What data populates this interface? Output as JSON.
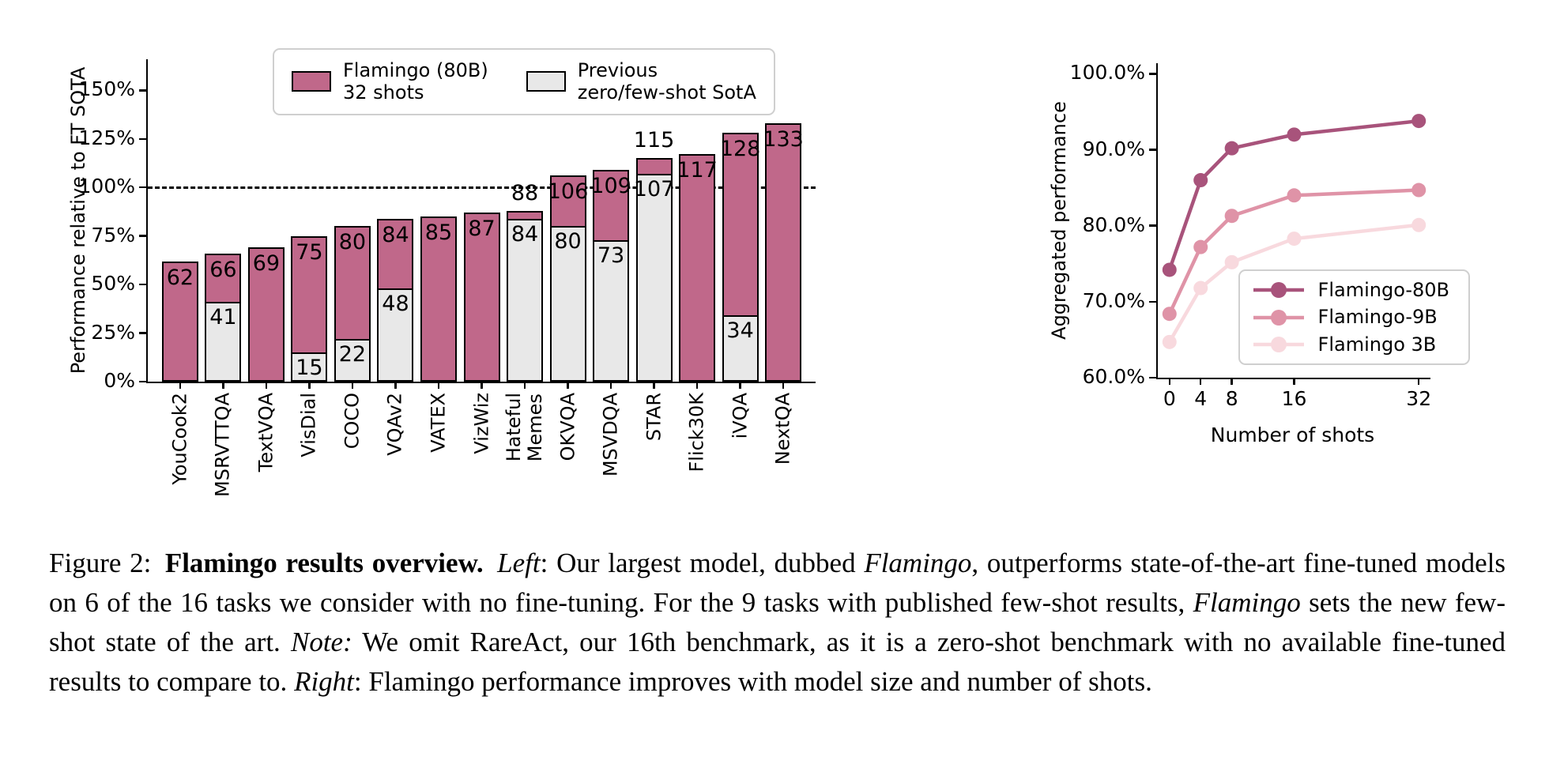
{
  "colors": {
    "flamingo_bar": "#c0688a",
    "prev_sota_bar": "#e8e8e8",
    "flamingo_80b_line": "#a8537b",
    "flamingo_9b_line": "#df93a7",
    "flamingo_3b_line": "#f8d9de",
    "axis": "#000000"
  },
  "chart_data": [
    {
      "type": "bar",
      "ylabel": "Performance relative to FT SOTA",
      "yticks": [
        "0%",
        "25%",
        "50%",
        "75%",
        "100%",
        "125%",
        "150%"
      ],
      "ylim": [
        0,
        166
      ],
      "reference_line": 100,
      "grid": false,
      "legend_position": "top-center",
      "legend": [
        {
          "label": "Flamingo (80B)\n32 shots",
          "color_key": "flamingo_bar"
        },
        {
          "label": "Previous\nzero/few-shot SotA",
          "color_key": "prev_sota_bar"
        }
      ],
      "categories": [
        "YouCook2",
        "MSRVTTQA",
        "TextVQA",
        "VisDial",
        "COCO",
        "VQAv2",
        "VATEX",
        "VizWiz",
        "Hateful\nMemes",
        "OKVQA",
        "MSVDQA",
        "STAR",
        "Flick30K",
        "iVQA",
        "NextQA"
      ],
      "series": [
        {
          "name": "Flamingo (80B) 32 shots",
          "color_key": "flamingo_bar",
          "values": [
            62,
            66,
            69,
            75,
            80,
            84,
            85,
            87,
            88,
            106,
            109,
            115,
            117,
            128,
            133
          ]
        },
        {
          "name": "Previous zero/few-shot SotA",
          "color_key": "prev_sota_bar",
          "values": [
            null,
            41,
            null,
            15,
            22,
            48,
            null,
            null,
            84,
            80,
            73,
            107,
            null,
            34,
            null
          ]
        }
      ]
    },
    {
      "type": "line",
      "ylabel": "Aggregated performance",
      "xlabel": "Number of shots",
      "x": [
        0,
        4,
        8,
        16,
        32
      ],
      "xticks": [
        "0",
        "4",
        "8",
        "16",
        "32"
      ],
      "yticks": [
        "60.0%",
        "70.0%",
        "80.0%",
        "90.0%",
        "100.0%"
      ],
      "xlim": [
        -1.5,
        33.5
      ],
      "ylim": [
        60,
        101.4
      ],
      "grid": false,
      "legend_position": "lower-right",
      "series": [
        {
          "name": "Flamingo-80B",
          "color_key": "flamingo_80b_line",
          "values": [
            74.2,
            86.0,
            90.2,
            92.0,
            93.8
          ]
        },
        {
          "name": "Flamingo-9B",
          "color_key": "flamingo_9b_line",
          "values": [
            68.4,
            77.2,
            81.3,
            84.0,
            84.7
          ]
        },
        {
          "name": "Flamingo 3B",
          "color_key": "flamingo_3b_line",
          "values": [
            64.7,
            71.8,
            75.2,
            78.3,
            80.1
          ]
        }
      ]
    }
  ],
  "caption": {
    "segments": [
      {
        "text": "Figure 2: ",
        "style": "normal"
      },
      {
        "text": "Flamingo results overview.",
        "style": "bold"
      },
      {
        "text": " ",
        "style": "normal"
      },
      {
        "text": "Left",
        "style": "italic"
      },
      {
        "text": ": Our largest model, dubbed ",
        "style": "normal"
      },
      {
        "text": "Flamingo",
        "style": "italic"
      },
      {
        "text": ", outperforms state-of-the-art fine-tuned models on 6 of the 16 tasks we consider with no fine-tuning. For the 9 tasks with published few-shot results, ",
        "style": "normal"
      },
      {
        "text": "Flamingo",
        "style": "italic"
      },
      {
        "text": " sets the new few-shot state of the art. ",
        "style": "normal"
      },
      {
        "text": "Note:",
        "style": "italic"
      },
      {
        "text": " We omit RareAct, our 16th benchmark, as it is a zero-shot benchmark with no available fine-tuned results to compare to. ",
        "style": "normal"
      },
      {
        "text": "Right",
        "style": "italic"
      },
      {
        "text": ": Flamingo performance improves with model size and number of shots.",
        "style": "normal"
      }
    ]
  }
}
